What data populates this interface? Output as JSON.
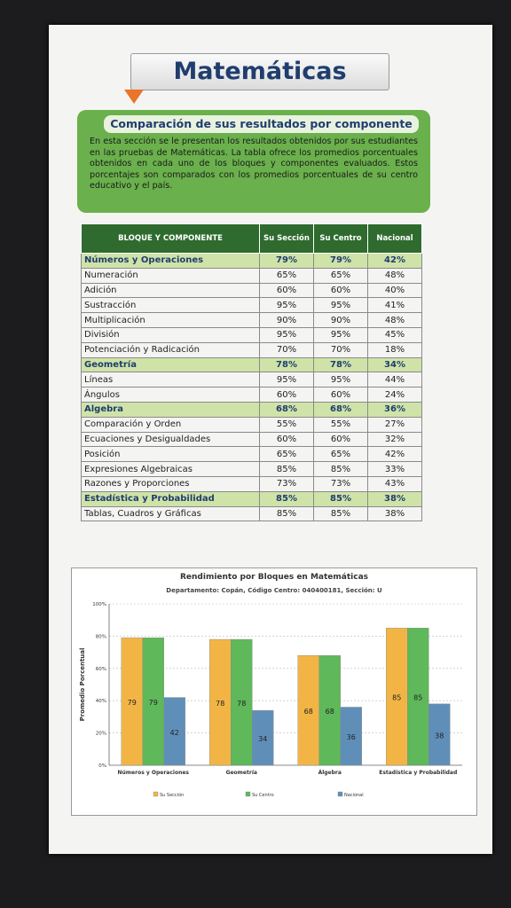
{
  "header": {
    "title": "Matemáticas"
  },
  "section": {
    "title": "Comparación de sus resultados por componente",
    "text": "En esta sección se le presentan los resultados obtenidos por sus estudiantes en las pruebas de Matemáticas. La tabla ofrece los promedios porcentuales obtenidos en cada uno de los bloques y componentes evaluados. Estos porcentajes son comparados con los promedios porcentuales de su centro educativo y el país."
  },
  "table": {
    "columns": [
      "BLOQUE Y COMPONENTE",
      "Su Sección",
      "Su Centro",
      "Nacional"
    ],
    "groups": [
      {
        "name": "Números y Operaciones",
        "values": [
          "79%",
          "79%",
          "42%"
        ],
        "rows": [
          {
            "name": "Numeración",
            "values": [
              "65%",
              "65%",
              "48%"
            ]
          },
          {
            "name": "Adición",
            "values": [
              "60%",
              "60%",
              "40%"
            ]
          },
          {
            "name": "Sustracción",
            "values": [
              "95%",
              "95%",
              "41%"
            ]
          },
          {
            "name": "Multiplicación",
            "values": [
              "90%",
              "90%",
              "48%"
            ]
          },
          {
            "name": "División",
            "values": [
              "95%",
              "95%",
              "45%"
            ]
          },
          {
            "name": "Potenciación y Radicación",
            "values": [
              "70%",
              "70%",
              "18%"
            ]
          }
        ]
      },
      {
        "name": "Geometría",
        "values": [
          "78%",
          "78%",
          "34%"
        ],
        "rows": [
          {
            "name": "Líneas",
            "values": [
              "95%",
              "95%",
              "44%"
            ]
          },
          {
            "name": "Ángulos",
            "values": [
              "60%",
              "60%",
              "24%"
            ]
          }
        ]
      },
      {
        "name": "Algebra",
        "values": [
          "68%",
          "68%",
          "36%"
        ],
        "rows": [
          {
            "name": "Comparación y Orden",
            "values": [
              "55%",
              "55%",
              "27%"
            ]
          },
          {
            "name": "Ecuaciones y Desigualdades",
            "values": [
              "60%",
              "60%",
              "32%"
            ]
          },
          {
            "name": "Posición",
            "values": [
              "65%",
              "65%",
              "42%"
            ]
          },
          {
            "name": "Expresiones Algebraicas",
            "values": [
              "85%",
              "85%",
              "33%"
            ]
          },
          {
            "name": "Razones y Proporciones",
            "values": [
              "73%",
              "73%",
              "43%"
            ]
          }
        ]
      },
      {
        "name": "Estadística y Probabilidad",
        "values": [
          "85%",
          "85%",
          "38%"
        ],
        "rows": [
          {
            "name": "Tablas, Cuadros y Gráficas",
            "values": [
              "85%",
              "85%",
              "38%"
            ]
          }
        ]
      }
    ]
  },
  "chart_data": {
    "type": "bar",
    "title": "Rendimiento por Bloques en Matemáticas",
    "subtitle": "Departamento: Copán, Código Centro: 040400181, Sección: U",
    "y_label": "Promedio Porcentual",
    "categories": [
      "Números y Operaciones",
      "Geometría",
      "Álgebra",
      "Estadística y Probabilidad"
    ],
    "series": [
      {
        "name": "Su Sección",
        "color": "#f2b545",
        "values": [
          79,
          78,
          68,
          85
        ]
      },
      {
        "name": "Su Centro",
        "color": "#5fb85a",
        "values": [
          79,
          78,
          68,
          85
        ]
      },
      {
        "name": "Nacional",
        "color": "#5f8fb8",
        "values": [
          42,
          34,
          36,
          38
        ]
      }
    ],
    "ylim": [
      0,
      100
    ],
    "yticks": [
      {
        "value": 0,
        "label": "0%"
      },
      {
        "value": 20,
        "label": "20%"
      },
      {
        "value": 40,
        "label": "40%"
      },
      {
        "value": 60,
        "label": "60%"
      },
      {
        "value": 80,
        "label": "80%"
      },
      {
        "value": 100,
        "label": "100%"
      }
    ],
    "grid": true
  }
}
